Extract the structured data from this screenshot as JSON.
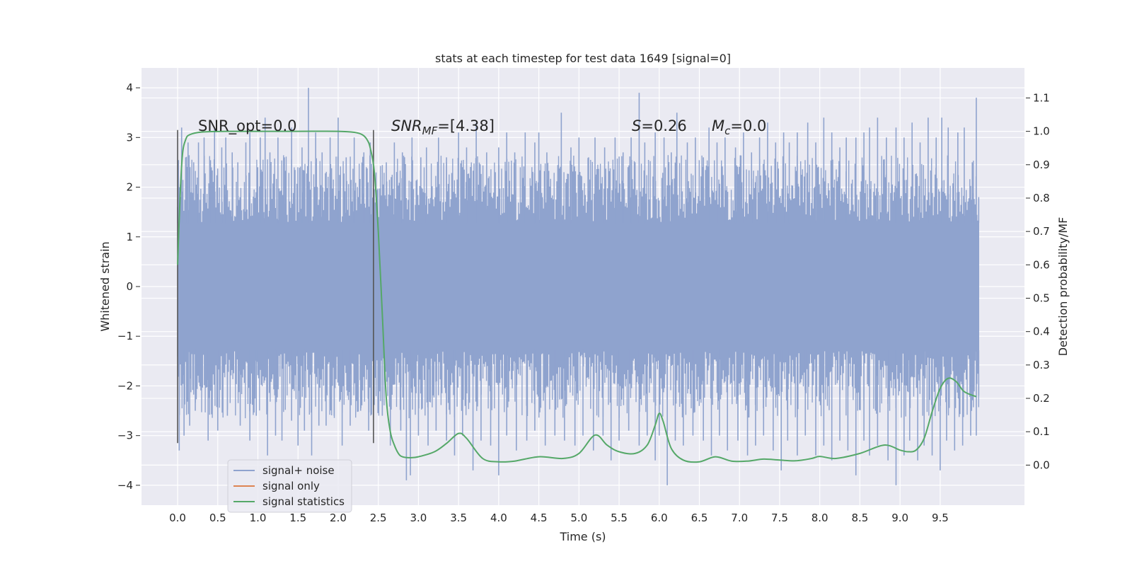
{
  "chart_data": {
    "type": "line",
    "title": "stats at each timestep for test data 1649 [signal=0]",
    "xlabel": "Time (s)",
    "ylabel": "Whitened strain",
    "y2label": "Detection probability/MF",
    "xlim": [
      -0.45,
      10.55
    ],
    "ylim": [
      -4.4,
      4.4
    ],
    "y2lim": [
      -0.12,
      1.19
    ],
    "grid": true,
    "x_ticks": [
      "0.0",
      "0.5",
      "1.0",
      "1.5",
      "2.0",
      "2.5",
      "3.0",
      "3.5",
      "4.0",
      "4.5",
      "5.0",
      "5.5",
      "6.0",
      "6.5",
      "7.0",
      "7.5",
      "8.0",
      "8.5",
      "9.0",
      "9.5"
    ],
    "y_ticks": [
      "4",
      "3",
      "2",
      "1",
      "0",
      "−1",
      "−2",
      "−3",
      "−4"
    ],
    "y2_ticks": [
      "1.1",
      "1.0",
      "0.9",
      "0.8",
      "0.7",
      "0.6",
      "0.5",
      "0.4",
      "0.3",
      "0.2",
      "0.1",
      "0.0"
    ],
    "annotations": {
      "snr_opt": "SNR_opt=0.0",
      "snr_mf_italic": "SNR",
      "snr_mf_sub": "MF",
      "snr_mf_rest": "=[4.38]",
      "s_italic": "S",
      "s_rest": "=0.26",
      "mc_italic": "M",
      "mc_sub": "c",
      "mc_rest": "=0.0"
    },
    "markers": [
      0.0,
      2.44
    ],
    "legend": {
      "placement": "lower-left",
      "entries": [
        "signal+ noise",
        "signal only",
        "signal statistics"
      ]
    },
    "colors": {
      "background": "#EAEAF2",
      "grid": "#FFFFFF",
      "noise": "#8FA3CE",
      "signal_only": "#DD8452",
      "statistics": "#55A868",
      "marker": "#555555"
    },
    "noise_series": {
      "name": "signal+ noise",
      "x_range": [
        0.0,
        9.98
      ],
      "envelope": 1.28,
      "spikes_up": [
        [
          0.0,
          1.6
        ],
        [
          0.02,
          2.0
        ],
        [
          0.05,
          3.2
        ],
        [
          0.1,
          2.6
        ],
        [
          0.13,
          2.9
        ],
        [
          0.2,
          2.5
        ],
        [
          0.26,
          2.9
        ],
        [
          0.33,
          3.0
        ],
        [
          0.42,
          2.4
        ],
        [
          0.46,
          3.2
        ],
        [
          0.55,
          2.8
        ],
        [
          0.6,
          3.0
        ],
        [
          0.68,
          2.7
        ],
        [
          0.75,
          2.5
        ],
        [
          0.85,
          2.9
        ],
        [
          0.9,
          3.1
        ],
        [
          1.03,
          3.0
        ],
        [
          1.09,
          3.4
        ],
        [
          1.15,
          2.7
        ],
        [
          1.25,
          3.0
        ],
        [
          1.33,
          2.6
        ],
        [
          1.42,
          3.2
        ],
        [
          1.55,
          2.8
        ],
        [
          1.63,
          4.0
        ],
        [
          1.72,
          3.1
        ],
        [
          1.8,
          2.7
        ],
        [
          1.9,
          3.0
        ],
        [
          2.0,
          3.4
        ],
        [
          2.1,
          2.6
        ],
        [
          2.2,
          3.0
        ],
        [
          2.32,
          2.7
        ],
        [
          2.4,
          2.9
        ],
        [
          2.6,
          2.5
        ],
        [
          2.7,
          2.9
        ],
        [
          2.8,
          2.7
        ],
        [
          2.92,
          3.0
        ],
        [
          3.03,
          2.6
        ],
        [
          3.1,
          2.8
        ],
        [
          3.25,
          3.0
        ],
        [
          3.35,
          2.6
        ],
        [
          3.5,
          3.1
        ],
        [
          3.6,
          2.8
        ],
        [
          3.72,
          3.3
        ],
        [
          3.85,
          2.7
        ],
        [
          4.0,
          2.8
        ],
        [
          4.1,
          3.1
        ],
        [
          4.2,
          2.7
        ],
        [
          4.33,
          3.1
        ],
        [
          4.45,
          2.9
        ],
        [
          4.5,
          3.1
        ],
        [
          4.6,
          2.7
        ],
        [
          4.78,
          3.5
        ],
        [
          4.9,
          2.8
        ],
        [
          5.0,
          3.0
        ],
        [
          5.12,
          2.6
        ],
        [
          5.2,
          3.0
        ],
        [
          5.32,
          2.8
        ],
        [
          5.45,
          3.0
        ],
        [
          5.55,
          2.7
        ],
        [
          5.65,
          3.0
        ],
        [
          5.75,
          3.9
        ],
        [
          5.82,
          2.9
        ],
        [
          5.95,
          3.1
        ],
        [
          6.06,
          3.0
        ],
        [
          6.15,
          2.7
        ],
        [
          6.22,
          3.5
        ],
        [
          6.35,
          2.9
        ],
        [
          6.45,
          3.0
        ],
        [
          6.55,
          2.6
        ],
        [
          6.62,
          3.2
        ],
        [
          6.72,
          2.9
        ],
        [
          6.82,
          3.0
        ],
        [
          6.95,
          2.8
        ],
        [
          7.05,
          3.1
        ],
        [
          7.15,
          2.7
        ],
        [
          7.25,
          3.0
        ],
        [
          7.35,
          3.3
        ],
        [
          7.45,
          2.9
        ],
        [
          7.55,
          3.1
        ],
        [
          7.62,
          2.9
        ],
        [
          7.72,
          3.1
        ],
        [
          7.85,
          3.3
        ],
        [
          7.95,
          2.9
        ],
        [
          8.05,
          3.4
        ],
        [
          8.15,
          3.1
        ],
        [
          8.25,
          2.8
        ],
        [
          8.33,
          3.0
        ],
        [
          8.45,
          3.0
        ],
        [
          8.55,
          3.1
        ],
        [
          8.62,
          3.2
        ],
        [
          8.72,
          3.4
        ],
        [
          8.83,
          3.0
        ],
        [
          8.95,
          3.2
        ],
        [
          9.05,
          3.0
        ],
        [
          9.15,
          3.3
        ],
        [
          9.25,
          2.9
        ],
        [
          9.35,
          3.4
        ],
        [
          9.45,
          3.0
        ],
        [
          9.52,
          3.4
        ],
        [
          9.6,
          3.2
        ],
        [
          9.72,
          3.1
        ],
        [
          9.8,
          3.2
        ],
        [
          9.9,
          2.5
        ],
        [
          9.95,
          3.8
        ],
        [
          9.98,
          1.8
        ]
      ],
      "spikes_down": [
        [
          0.02,
          -3.3
        ],
        [
          0.08,
          -3.0
        ],
        [
          0.15,
          -2.8
        ],
        [
          0.22,
          -2.5
        ],
        [
          0.38,
          -3.1
        ],
        [
          0.5,
          -2.9
        ],
        [
          0.62,
          -2.6
        ],
        [
          0.78,
          -2.8
        ],
        [
          0.9,
          -3.1
        ],
        [
          0.98,
          -2.6
        ],
        [
          1.12,
          -3.4
        ],
        [
          1.22,
          -3.0
        ],
        [
          1.3,
          -3.1
        ],
        [
          1.42,
          -2.7
        ],
        [
          1.5,
          -3.2
        ],
        [
          1.58,
          -2.9
        ],
        [
          1.67,
          -3.4
        ],
        [
          1.76,
          -2.8
        ],
        [
          1.85,
          -2.8
        ],
        [
          1.95,
          -2.6
        ],
        [
          2.05,
          -3.2
        ],
        [
          2.15,
          -2.8
        ],
        [
          2.28,
          -2.5
        ],
        [
          2.38,
          -2.9
        ],
        [
          2.55,
          -2.6
        ],
        [
          2.65,
          -3.2
        ],
        [
          2.78,
          -2.9
        ],
        [
          2.85,
          -3.9
        ],
        [
          2.9,
          -3.8
        ],
        [
          3.0,
          -3.0
        ],
        [
          3.12,
          -3.2
        ],
        [
          3.22,
          -2.9
        ],
        [
          3.35,
          -3.1
        ],
        [
          3.45,
          -3.4
        ],
        [
          3.55,
          -3.0
        ],
        [
          3.68,
          -3.7
        ],
        [
          3.78,
          -3.1
        ],
        [
          3.9,
          -3.2
        ],
        [
          4.0,
          -3.8
        ],
        [
          4.1,
          -3.0
        ],
        [
          4.22,
          -3.3
        ],
        [
          4.35,
          -3.1
        ],
        [
          4.45,
          -2.9
        ],
        [
          4.58,
          -3.2
        ],
        [
          4.7,
          -3.0
        ],
        [
          4.82,
          -3.1
        ],
        [
          4.95,
          -3.2
        ],
        [
          5.05,
          -3.0
        ],
        [
          5.18,
          -3.3
        ],
        [
          5.3,
          -3.0
        ],
        [
          5.4,
          -3.5
        ],
        [
          5.5,
          -3.1
        ],
        [
          5.62,
          -2.9
        ],
        [
          5.75,
          -3.2
        ],
        [
          5.85,
          -3.0
        ],
        [
          5.95,
          -3.5
        ],
        [
          6.0,
          -3.0
        ],
        [
          6.1,
          -4.0
        ],
        [
          6.2,
          -3.1
        ],
        [
          6.3,
          -3.2
        ],
        [
          6.42,
          -3.0
        ],
        [
          6.55,
          -3.1
        ],
        [
          6.65,
          -3.4
        ],
        [
          6.75,
          -3.0
        ],
        [
          6.85,
          -3.3
        ],
        [
          6.98,
          -3.1
        ],
        [
          7.1,
          -3.4
        ],
        [
          7.2,
          -3.2
        ],
        [
          7.3,
          -3.0
        ],
        [
          7.42,
          -3.3
        ],
        [
          7.52,
          -3.7
        ],
        [
          7.6,
          -3.1
        ],
        [
          7.72,
          -3.4
        ],
        [
          7.82,
          -3.0
        ],
        [
          7.95,
          -3.4
        ],
        [
          8.05,
          -3.2
        ],
        [
          8.15,
          -3.5
        ],
        [
          8.25,
          -3.1
        ],
        [
          8.35,
          -3.3
        ],
        [
          8.45,
          -3.8
        ],
        [
          8.55,
          -3.1
        ],
        [
          8.62,
          -3.4
        ],
        [
          8.72,
          -3.2
        ],
        [
          8.85,
          -3.5
        ],
        [
          8.95,
          -4.0
        ],
        [
          9.05,
          -3.4
        ],
        [
          9.12,
          -3.1
        ],
        [
          9.22,
          -3.5
        ],
        [
          9.3,
          -3.2
        ],
        [
          9.4,
          -3.4
        ],
        [
          9.5,
          -3.7
        ],
        [
          9.58,
          -3.1
        ],
        [
          9.68,
          -3.3
        ],
        [
          9.78,
          -3.2
        ],
        [
          9.88,
          -3.0
        ],
        [
          9.95,
          -3.0
        ],
        [
          9.98,
          -2.2
        ]
      ]
    },
    "statistics_series": {
      "name": "signal statistics",
      "x": [
        0.0,
        0.03,
        0.06,
        0.1,
        0.15,
        0.3,
        0.6,
        1.0,
        1.5,
        2.0,
        2.2,
        2.3,
        2.36,
        2.4,
        2.45,
        2.5,
        2.55,
        2.6,
        2.65,
        2.7,
        2.75,
        2.8,
        2.9,
        3.0,
        3.2,
        3.35,
        3.5,
        3.6,
        3.8,
        4.0,
        4.2,
        4.5,
        4.8,
        5.0,
        5.2,
        5.35,
        5.5,
        5.7,
        5.85,
        5.95,
        6.0,
        6.05,
        6.15,
        6.3,
        6.5,
        6.7,
        6.9,
        7.1,
        7.3,
        7.5,
        7.7,
        7.9,
        8.0,
        8.2,
        8.5,
        8.8,
        9.0,
        9.1,
        9.2,
        9.3,
        9.4,
        9.5,
        9.6,
        9.7,
        9.8,
        9.95
      ],
      "y": [
        0.6,
        0.8,
        0.93,
        0.975,
        0.99,
        0.998,
        1.0,
        1.0,
        1.0,
        1.0,
        0.997,
        0.99,
        0.975,
        0.95,
        0.88,
        0.7,
        0.45,
        0.2,
        0.1,
        0.06,
        0.035,
        0.025,
        0.022,
        0.025,
        0.04,
        0.065,
        0.095,
        0.08,
        0.02,
        0.01,
        0.012,
        0.025,
        0.02,
        0.035,
        0.09,
        0.06,
        0.04,
        0.035,
        0.06,
        0.12,
        0.155,
        0.13,
        0.05,
        0.015,
        0.01,
        0.025,
        0.012,
        0.012,
        0.018,
        0.015,
        0.013,
        0.02,
        0.026,
        0.02,
        0.035,
        0.06,
        0.045,
        0.04,
        0.045,
        0.08,
        0.16,
        0.23,
        0.26,
        0.25,
        0.22,
        0.205
      ]
    }
  }
}
